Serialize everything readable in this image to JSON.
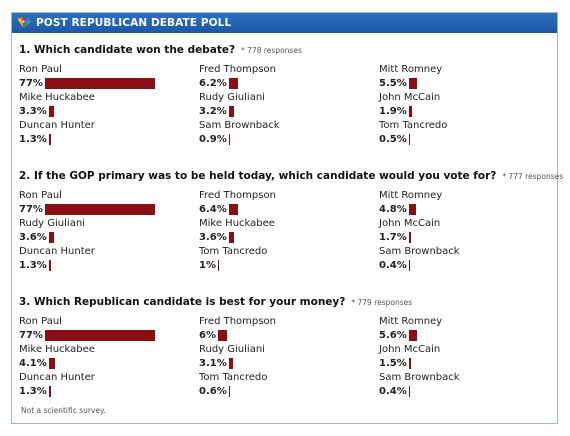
{
  "header": {
    "title": "POST REPUBLICAN DEBATE POLL",
    "logo_icon": "nbc-peacock-icon"
  },
  "colors": {
    "header_bg": "#1f5fae",
    "bar": "#8b0e12",
    "border": "#9db6d6"
  },
  "questions": [
    {
      "title": "1. Which candidate won the debate?",
      "responses": "* 778 responses",
      "candidates": [
        {
          "name": "Ron Paul",
          "pct_label": "77%",
          "pct": 77
        },
        {
          "name": "Fred Thompson",
          "pct_label": "6.2%",
          "pct": 6.2
        },
        {
          "name": "Mitt Romney",
          "pct_label": "5.5%",
          "pct": 5.5
        },
        {
          "name": "Mike Huckabee",
          "pct_label": "3.3%",
          "pct": 3.3
        },
        {
          "name": "Rudy Giuliani",
          "pct_label": "3.2%",
          "pct": 3.2
        },
        {
          "name": "John McCain",
          "pct_label": "1.9%",
          "pct": 1.9
        },
        {
          "name": "Duncan Hunter",
          "pct_label": "1.3%",
          "pct": 1.3
        },
        {
          "name": "Sam Brownback",
          "pct_label": "0.9%",
          "pct": 0.9
        },
        {
          "name": "Tom Tancredo",
          "pct_label": "0.5%",
          "pct": 0.5
        }
      ]
    },
    {
      "title": "2. If the GOP primary was to be held today, which candidate would you vote for?",
      "responses": "* 777 responses",
      "candidates": [
        {
          "name": "Ron Paul",
          "pct_label": "77%",
          "pct": 77
        },
        {
          "name": "Fred Thompson",
          "pct_label": "6.4%",
          "pct": 6.4
        },
        {
          "name": "Mitt Romney",
          "pct_label": "4.8%",
          "pct": 4.8
        },
        {
          "name": "Rudy Giuliani",
          "pct_label": "3.6%",
          "pct": 3.6
        },
        {
          "name": "Mike Huckabee",
          "pct_label": "3.6%",
          "pct": 3.6
        },
        {
          "name": "John McCain",
          "pct_label": "1.7%",
          "pct": 1.7
        },
        {
          "name": "Duncan Hunter",
          "pct_label": "1.3%",
          "pct": 1.3
        },
        {
          "name": "Tom Tancredo",
          "pct_label": "1%",
          "pct": 1
        },
        {
          "name": "Sam Brownback",
          "pct_label": "0.4%",
          "pct": 0.4
        }
      ]
    },
    {
      "title": "3. Which Republican candidate is best for your money?",
      "responses": "* 779 responses",
      "candidates": [
        {
          "name": "Ron Paul",
          "pct_label": "77%",
          "pct": 77
        },
        {
          "name": "Fred Thompson",
          "pct_label": "6%",
          "pct": 6
        },
        {
          "name": "Mitt Romney",
          "pct_label": "5.6%",
          "pct": 5.6
        },
        {
          "name": "Mike Huckabee",
          "pct_label": "4.1%",
          "pct": 4.1
        },
        {
          "name": "Rudy Giuliani",
          "pct_label": "3.1%",
          "pct": 3.1
        },
        {
          "name": "John McCain",
          "pct_label": "1.5%",
          "pct": 1.5
        },
        {
          "name": "Duncan Hunter",
          "pct_label": "1.3%",
          "pct": 1.3
        },
        {
          "name": "Tom Tancredo",
          "pct_label": "0.6%",
          "pct": 0.6
        },
        {
          "name": "Sam Brownback",
          "pct_label": "0.4%",
          "pct": 0.4
        }
      ]
    }
  ],
  "footer": {
    "disclaimer": "Not a scientific survey."
  }
}
